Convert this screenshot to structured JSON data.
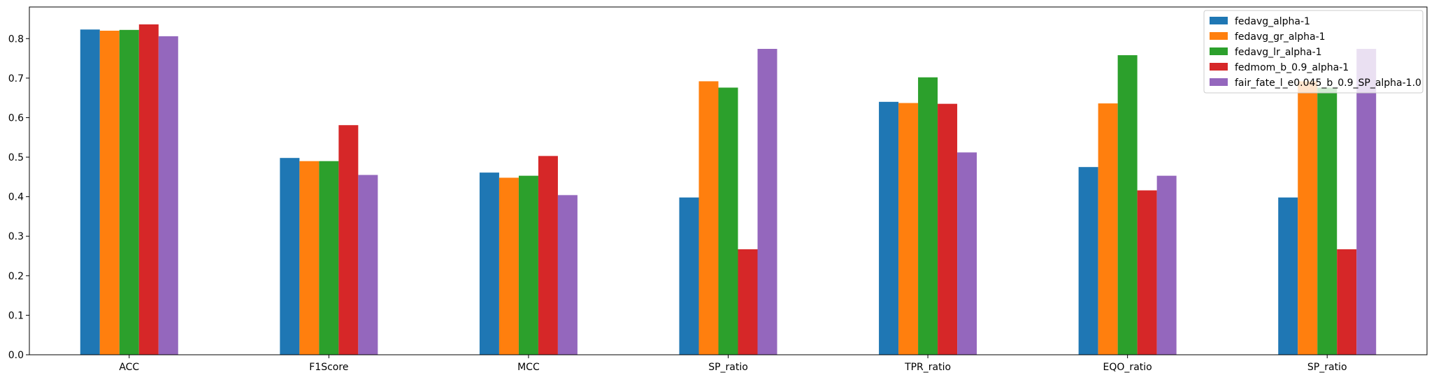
{
  "chart_data": {
    "type": "bar",
    "categories": [
      "ACC",
      "F1Score",
      "MCC",
      "SP_ratio",
      "TPR_ratio",
      "EQO_ratio",
      "SP_ratio"
    ],
    "series": [
      {
        "name": "fedavg_alpha-1",
        "color": "#1f77b4",
        "values": [
          0.823,
          0.498,
          0.461,
          0.398,
          0.64,
          0.475,
          0.398
        ]
      },
      {
        "name": "fedavg_gr_alpha-1",
        "color": "#ff7f0e",
        "values": [
          0.82,
          0.49,
          0.448,
          0.692,
          0.637,
          0.636,
          0.692
        ]
      },
      {
        "name": "fedavg_lr_alpha-1",
        "color": "#2ca02c",
        "values": [
          0.822,
          0.49,
          0.453,
          0.676,
          0.702,
          0.758,
          0.676
        ]
      },
      {
        "name": "fedmom_b_0.9_alpha-1",
        "color": "#d62728",
        "values": [
          0.836,
          0.581,
          0.503,
          0.267,
          0.635,
          0.416,
          0.267
        ]
      },
      {
        "name": "fair_fate_l_e0.045_b_0.9_SP_alpha-1.0",
        "color": "#9467bd",
        "values": [
          0.806,
          0.455,
          0.404,
          0.774,
          0.512,
          0.453,
          0.774
        ]
      }
    ],
    "ylim": [
      0,
      0.88
    ],
    "yticks": [
      "0.0",
      "0.1",
      "0.2",
      "0.3",
      "0.4",
      "0.5",
      "0.6",
      "0.7",
      "0.8"
    ],
    "title": "",
    "xlabel": "",
    "ylabel": "",
    "grid": false,
    "legend_position": "top-right"
  }
}
